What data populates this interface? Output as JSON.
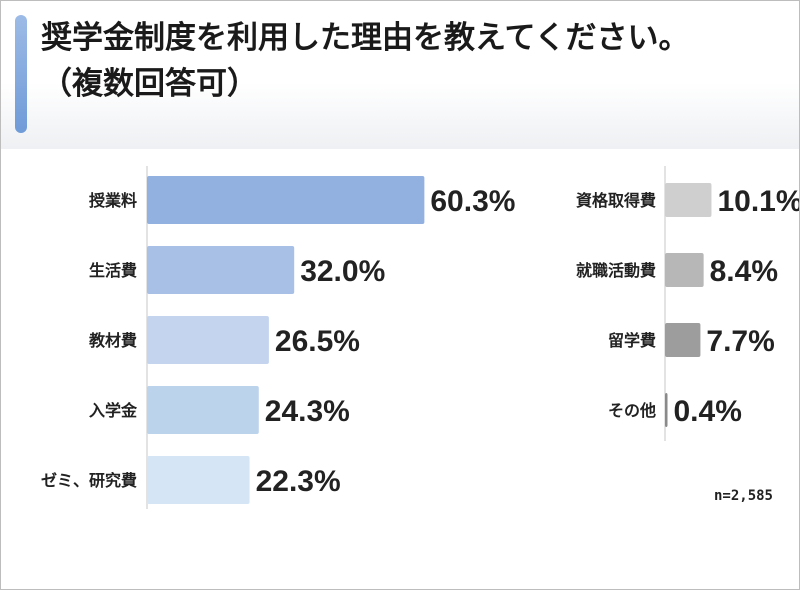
{
  "title": {
    "line1": "奨学金制度を利用した理由を教えてください。",
    "line2": "（複数回答可）"
  },
  "chart_data": {
    "type": "bar",
    "orientation": "horizontal",
    "title": "奨学金制度を利用した理由を教えてください。（複数回答可）",
    "unit": "%",
    "sample_size": "n=2,585",
    "groups": [
      {
        "categories": [
          "授業料",
          "生活費",
          "教材費",
          "入学金",
          "ゼミ、研究費"
        ],
        "values": [
          60.3,
          32.0,
          26.5,
          24.3,
          22.3
        ],
        "value_labels": [
          "60.3%",
          "32.0%",
          "26.5%",
          "24.3%",
          "22.3%"
        ],
        "colors": [
          "#93b1e0",
          "#a8c0e6",
          "#c4d4ef",
          "#bcd3ec",
          "#d6e5f5"
        ]
      },
      {
        "categories": [
          "資格取得費",
          "就職活動費",
          "留学費",
          "その他"
        ],
        "values": [
          10.1,
          8.4,
          7.7,
          0.4
        ],
        "value_labels": [
          "10.1%",
          "8.4%",
          "7.7%",
          "0.4%"
        ],
        "colors": [
          "#cfcfcf",
          "#b7b7b7",
          "#9d9d9d",
          "#8a8a8a"
        ]
      }
    ]
  }
}
